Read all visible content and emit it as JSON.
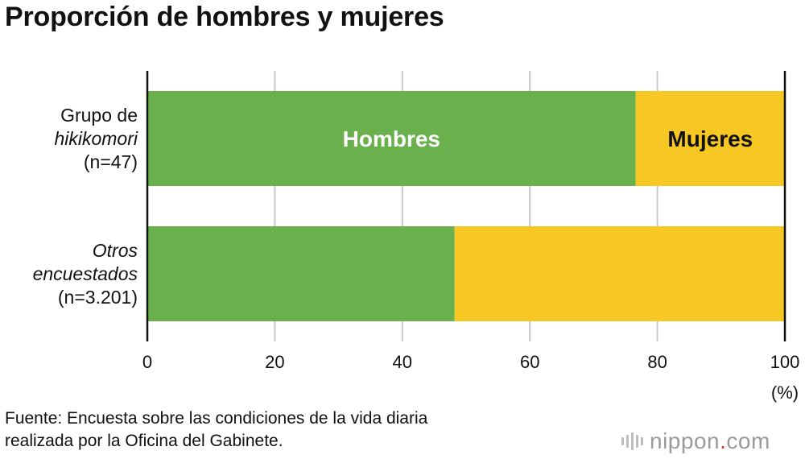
{
  "chart_data": {
    "type": "bar",
    "orientation": "horizontal",
    "stacked": true,
    "title": "Proporción de hombres y mujeres",
    "unit_label": "(%)",
    "xlim": [
      0,
      100
    ],
    "x_ticks": [
      "0",
      "20",
      "40",
      "60",
      "80",
      "100"
    ],
    "grid": true,
    "categories": [
      {
        "lines": [
          {
            "text": "Grupo de",
            "italic": false
          },
          {
            "text": "hikikomori",
            "italic": true
          },
          {
            "text": "(n=47)",
            "italic": false
          }
        ]
      },
      {
        "lines": [
          {
            "text": "Otros",
            "italic": true
          },
          {
            "text": "encuestados",
            "italic": true
          },
          {
            "text": "(n=3.201)",
            "italic": false
          }
        ]
      }
    ],
    "series": [
      {
        "name": "Hombres",
        "color": "#6ab04c",
        "label_color": "#ffffff",
        "values": [
          76.6,
          48.2
        ]
      },
      {
        "name": "Mujeres",
        "color": "#f7c823",
        "label_color": "#111111",
        "values": [
          23.4,
          51.8
        ]
      }
    ]
  },
  "source": {
    "line1": "Fuente: Encuesta sobre las condiciones de la vida diaria",
    "line2": "realizada por la Oficina del Gabinete."
  },
  "brand": {
    "name": "nippon",
    "dot": ".",
    "suffix": "com"
  }
}
